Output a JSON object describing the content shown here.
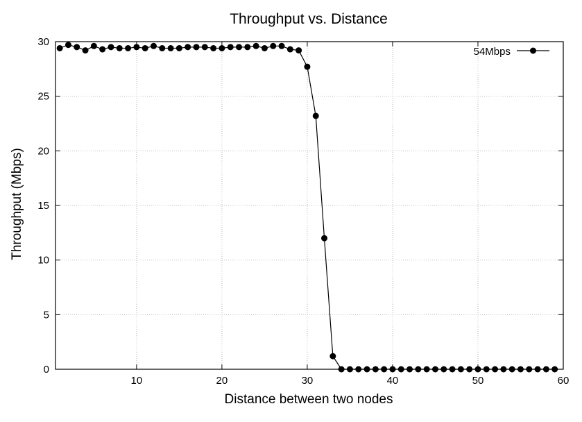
{
  "chart_data": {
    "type": "line",
    "title": "Throughput vs. Distance",
    "xlabel": "Distance between two nodes",
    "ylabel": "Throughput (Mbps)",
    "xlim": [
      0.5,
      60
    ],
    "ylim": [
      0,
      30
    ],
    "x_ticks": [
      10,
      20,
      30,
      40,
      50,
      60
    ],
    "y_ticks": [
      0,
      5,
      10,
      15,
      20,
      25,
      30
    ],
    "grid": true,
    "legend_position": "top-right",
    "series": [
      {
        "name": "54Mbps",
        "color": "#000000",
        "marker": "filled-circle",
        "x": [
          1,
          2,
          3,
          4,
          5,
          6,
          7,
          8,
          9,
          10,
          11,
          12,
          13,
          14,
          15,
          16,
          17,
          18,
          19,
          20,
          21,
          22,
          23,
          24,
          25,
          26,
          27,
          28,
          29,
          30,
          31,
          32,
          33,
          34,
          35,
          36,
          37,
          38,
          39,
          40,
          41,
          42,
          43,
          44,
          45,
          46,
          47,
          48,
          49,
          50,
          51,
          52,
          53,
          54,
          55,
          56,
          57,
          58,
          59
        ],
        "values": [
          29.4,
          29.7,
          29.5,
          29.2,
          29.6,
          29.3,
          29.5,
          29.4,
          29.4,
          29.5,
          29.4,
          29.6,
          29.4,
          29.4,
          29.4,
          29.5,
          29.5,
          29.5,
          29.4,
          29.4,
          29.5,
          29.5,
          29.5,
          29.6,
          29.4,
          29.6,
          29.6,
          29.3,
          29.2,
          27.7,
          23.2,
          12.0,
          1.2,
          0,
          0,
          0,
          0,
          0,
          0,
          0,
          0,
          0,
          0,
          0,
          0,
          0,
          0,
          0,
          0,
          0,
          0,
          0,
          0,
          0,
          0,
          0,
          0,
          0,
          0
        ]
      }
    ]
  }
}
